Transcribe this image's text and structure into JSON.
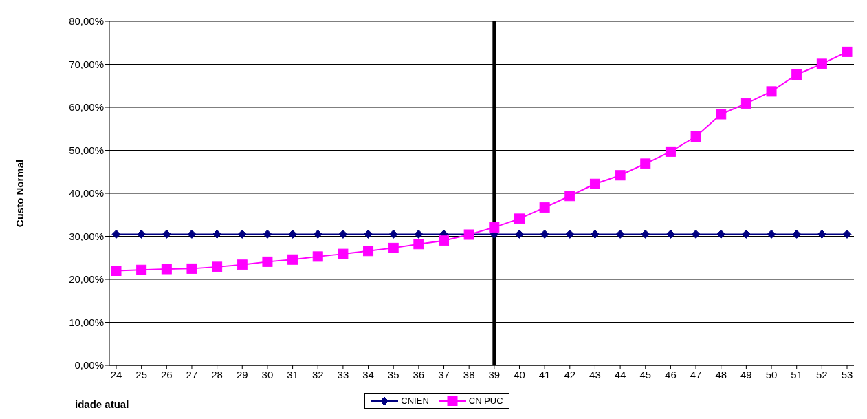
{
  "chart_data": {
    "type": "line",
    "xlabel": "idade atual",
    "ylabel": "Custo Normal",
    "categories": [
      "24",
      "25",
      "26",
      "27",
      "28",
      "29",
      "30",
      "31",
      "32",
      "33",
      "34",
      "35",
      "36",
      "37",
      "38",
      "39",
      "40",
      "41",
      "42",
      "43",
      "44",
      "45",
      "46",
      "47",
      "48",
      "49",
      "50",
      "51",
      "52",
      "53"
    ],
    "series": [
      {
        "name": "CNIEN",
        "color": "#000080",
        "marker": "diamond",
        "values": [
          30.5,
          30.5,
          30.5,
          30.5,
          30.5,
          30.5,
          30.5,
          30.5,
          30.5,
          30.5,
          30.5,
          30.5,
          30.5,
          30.5,
          null,
          30.5,
          30.5,
          30.5,
          30.5,
          30.5,
          30.5,
          30.5,
          30.5,
          30.5,
          30.5,
          30.5,
          30.5,
          30.5,
          30.5,
          30.5
        ]
      },
      {
        "name": "CN PUC",
        "color": "#ff00ff",
        "marker": "square",
        "values": [
          22.0,
          22.2,
          22.4,
          22.5,
          22.9,
          23.4,
          24.1,
          24.6,
          25.3,
          25.9,
          26.6,
          27.3,
          28.2,
          29.0,
          30.4,
          32.1,
          34.1,
          36.7,
          39.4,
          42.2,
          44.2,
          46.9,
          49.7,
          53.2,
          58.4,
          60.9,
          63.7,
          67.6,
          70.1,
          72.9
        ]
      }
    ],
    "ylim": [
      0,
      80
    ],
    "yticks": [
      {
        "value": 0,
        "label": "0,00%"
      },
      {
        "value": 10,
        "label": "10,00%"
      },
      {
        "value": 20,
        "label": "20,00%"
      },
      {
        "value": 30,
        "label": "30,00%"
      },
      {
        "value": 40,
        "label": "40,00%"
      },
      {
        "value": 50,
        "label": "50,00%"
      },
      {
        "value": 60,
        "label": "60,00%"
      },
      {
        "value": 70,
        "label": "70,00%"
      },
      {
        "value": 80,
        "label": "80,00%"
      }
    ],
    "grid": "y",
    "legend": "bottom",
    "ref_lines": [
      {
        "axis": "x",
        "value": "39",
        "color": "#000000"
      }
    ]
  }
}
